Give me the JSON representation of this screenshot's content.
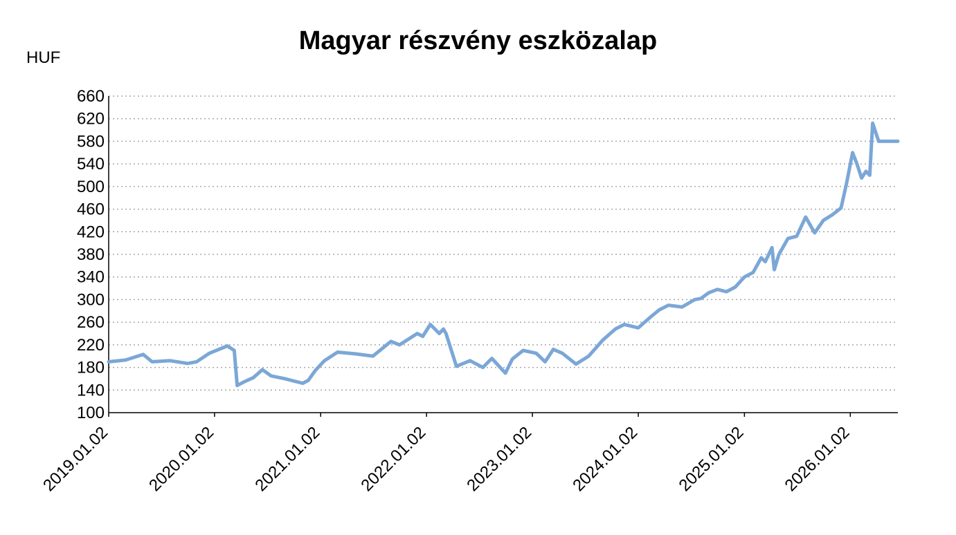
{
  "chart_data": {
    "type": "line",
    "title": "Magyar részvény eszközalap",
    "ylabel": "HUF",
    "xlabel": "",
    "ylim": [
      100,
      660
    ],
    "y_ticks": [
      100,
      140,
      180,
      220,
      260,
      300,
      340,
      380,
      420,
      460,
      500,
      540,
      580,
      620,
      660
    ],
    "x_range": [
      "2019.01.02",
      "2026.06.15"
    ],
    "x_tick_labels": [
      "2019.01.02",
      "2020.01.02",
      "2021.01.02",
      "2022.01.02",
      "2023.01.02",
      "2024.01.02",
      "2025.01.02",
      "2026.01.02"
    ],
    "grid": "horizontal dotted",
    "line_color": "#7BA7D6",
    "series": [
      {
        "x": [
          "2019.01.02",
          "2019.03.01",
          "2019.05.01",
          "2019.06.01",
          "2019.08.01",
          "2019.10.01",
          "2019.11.01",
          "2019.12.15",
          "2020.02.15",
          "2020.03.10",
          "2020.03.20",
          "2020.04.15",
          "2020.05.15",
          "2020.06.15",
          "2020.07.15",
          "2020.09.01",
          "2020.11.01",
          "2020.11.20",
          "2020.12.15",
          "2021.01.15",
          "2021.03.01",
          "2021.05.01",
          "2021.07.01",
          "2021.09.01",
          "2021.10.01",
          "2021.12.01",
          "2021.12.20",
          "2022.01.15",
          "2022.02.15",
          "2022.03.01",
          "2022.03.10",
          "2022.04.15",
          "2022.06.01",
          "2022.07.15",
          "2022.08.15",
          "2022.10.01",
          "2022.10.25",
          "2022.12.01",
          "2023.01.15",
          "2023.02.15",
          "2023.03.15",
          "2023.04.15",
          "2023.06.01",
          "2023.07.15",
          "2023.09.01",
          "2023.10.15",
          "2023.11.15",
          "2024.01.02",
          "2024.02.15",
          "2024.03.15",
          "2024.04.15",
          "2024.06.01",
          "2024.07.15",
          "2024.08.05",
          "2024.09.01",
          "2024.10.01",
          "2024.11.01",
          "2024.12.01",
          "2025.01.02",
          "2025.02.01",
          "2025.03.01",
          "2025.03.15",
          "2025.04.07",
          "2025.04.15",
          "2025.05.01",
          "2025.06.01",
          "2025.07.01",
          "2025.08.01",
          "2025.09.01",
          "2025.10.01",
          "2025.11.01",
          "2025.12.01",
          "2025.12.20",
          "2026.01.10",
          "2026.01.25",
          "2026.02.10",
          "2026.02.25",
          "2026.03.10",
          "2026.03.20",
          "2026.04.10",
          "2026.04.25",
          "2026.05.10",
          "2026.05.20",
          "2026.06.01",
          "2026.06.15"
        ],
        "y": [
          190,
          193,
          203,
          190,
          192,
          187,
          190,
          205,
          218,
          210,
          148,
          155,
          162,
          176,
          165,
          160,
          152,
          157,
          175,
          192,
          207,
          204,
          200,
          226,
          220,
          240,
          235,
          256,
          240,
          248,
          240,
          182,
          192,
          180,
          196,
          170,
          195,
          210,
          205,
          190,
          212,
          205,
          186,
          200,
          228,
          248,
          256,
          250,
          270,
          282,
          290,
          287,
          300,
          302,
          312,
          318,
          314,
          322,
          340,
          348,
          374,
          367,
          392,
          353,
          380,
          408,
          412,
          446,
          418,
          440,
          450,
          462,
          505,
          560,
          540,
          515,
          527,
          520,
          612,
          580,
          580,
          580,
          580,
          580,
          580
        ]
      }
    ]
  }
}
